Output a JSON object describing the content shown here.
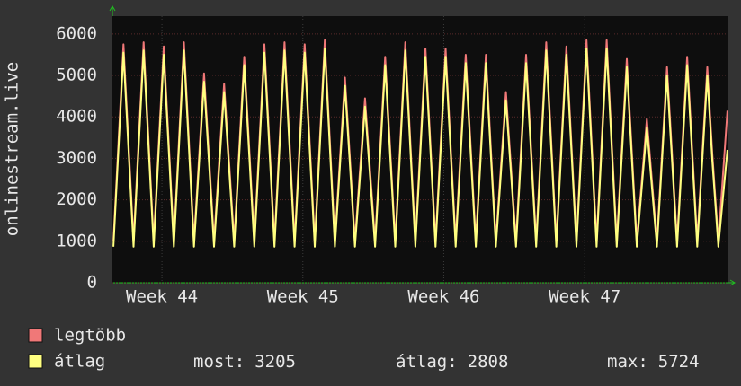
{
  "chart_data": {
    "type": "line",
    "ylabel": "onlinestream.live",
    "x": [
      0.05,
      0.3,
      0.55,
      0.8,
      1.05,
      1.3,
      1.55,
      1.8,
      2.05,
      2.3,
      2.55,
      2.8,
      3.05,
      3.3,
      3.55,
      3.8,
      4.05,
      4.3,
      4.55,
      4.8,
      5.05,
      5.3,
      5.55,
      5.8,
      6.05,
      6.3,
      6.55,
      6.8,
      7.05,
      7.3,
      7.55,
      7.8,
      8.05,
      8.3,
      8.55,
      8.8,
      9.05,
      9.3,
      9.55,
      9.8,
      10.05,
      10.3,
      10.55,
      10.8,
      11.05,
      11.3,
      11.55,
      11.8,
      12.05,
      12.3,
      12.55,
      12.8,
      13.05,
      13.3,
      13.55,
      13.8,
      14.05,
      14.3,
      14.55,
      14.8,
      15.05,
      15.3,
      15.55,
      15.8,
      16.05,
      16.3,
      16.55,
      16.8,
      17.05,
      17.3,
      17.55,
      17.8,
      18.05,
      18.3,
      18.55,
      18.8,
      19.05,
      19.3,
      19.55,
      19.8,
      20.05,
      20.3,
      20.55,
      20.8,
      21.05,
      21.3,
      21.55,
      21.8,
      22.05,
      22.3,
      22.55,
      22.8,
      23.05,
      23.3,
      23.55,
      23.8,
      24.05,
      24.3,
      24.55,
      24.8,
      25.05,
      25.3,
      25.55,
      25.8,
      26.05,
      26.3,
      26.55,
      26.8,
      27.05,
      27.3,
      27.55,
      27.8,
      28.05,
      28.3,
      28.55,
      28.8,
      29.05,
      29.3,
      29.55,
      29.8,
      30.1,
      30.55
    ],
    "series": [
      {
        "name": "legtöbb",
        "color": "#f07878",
        "values": [
          1000,
          3375,
          5750,
          3375,
          1000,
          3400,
          5800,
          3400,
          1000,
          3350,
          5700,
          3350,
          1000,
          3400,
          5800,
          3400,
          1000,
          3025,
          5050,
          3025,
          1000,
          2900,
          4800,
          2900,
          1000,
          3225,
          5450,
          3225,
          1000,
          3375,
          5750,
          3375,
          1000,
          3400,
          5800,
          3400,
          1000,
          3375,
          5750,
          3375,
          1000,
          3425,
          5850,
          3425,
          1000,
          2975,
          4950,
          2975,
          1000,
          2725,
          4450,
          2725,
          1000,
          3225,
          5450,
          3225,
          1000,
          3400,
          5800,
          3400,
          1000,
          3325,
          5650,
          3325,
          1000,
          3325,
          5650,
          3325,
          1000,
          3250,
          5500,
          3250,
          1000,
          3250,
          5500,
          3250,
          1000,
          2800,
          4600,
          2800,
          1000,
          3250,
          5500,
          3250,
          1000,
          3400,
          5800,
          3400,
          1000,
          3350,
          5700,
          3350,
          1000,
          3425,
          5850,
          3425,
          1000,
          3425,
          5850,
          3425,
          1000,
          3200,
          5400,
          3200,
          1000,
          2475,
          3950,
          2475,
          1000,
          3100,
          5200,
          3100,
          1000,
          3225,
          5450,
          3225,
          1000,
          3100,
          5200,
          3100,
          1000,
          4150
        ]
      },
      {
        "name": "átlag",
        "color": "#ffff80",
        "values": [
          870,
          3210,
          5550,
          3210,
          870,
          3235,
          5600,
          3235,
          870,
          3185,
          5500,
          3185,
          870,
          3235,
          5600,
          3235,
          870,
          2860,
          4850,
          2860,
          870,
          2735,
          4600,
          2735,
          870,
          3060,
          5250,
          3060,
          870,
          3210,
          5550,
          3210,
          870,
          3235,
          5600,
          3235,
          870,
          3210,
          5550,
          3210,
          870,
          3260,
          5650,
          3260,
          870,
          2810,
          4750,
          2810,
          870,
          2560,
          4250,
          2560,
          870,
          3060,
          5250,
          3060,
          870,
          3235,
          5600,
          3235,
          870,
          3160,
          5450,
          3160,
          870,
          3160,
          5450,
          3160,
          870,
          3085,
          5300,
          3085,
          870,
          3085,
          5300,
          3085,
          870,
          2635,
          4400,
          2635,
          870,
          3085,
          5300,
          3085,
          870,
          3235,
          5600,
          3235,
          870,
          3185,
          5500,
          3185,
          870,
          3260,
          5650,
          3260,
          870,
          3260,
          5650,
          3260,
          870,
          3035,
          5200,
          3035,
          870,
          2310,
          3750,
          2310,
          870,
          2935,
          5000,
          2935,
          870,
          3060,
          5250,
          3060,
          870,
          2935,
          5000,
          2935,
          870,
          3205
        ]
      }
    ],
    "xlim": [
      0,
      30.6
    ],
    "xticks": [
      {
        "value": 2.46,
        "label": "Week 44"
      },
      {
        "value": 9.46,
        "label": "Week 45"
      },
      {
        "value": 16.46,
        "label": "Week 46"
      },
      {
        "value": 23.46,
        "label": "Week 47"
      }
    ],
    "ylim": [
      0,
      6430
    ],
    "yticks": [
      0,
      1000,
      2000,
      3000,
      4000,
      5000,
      6000
    ],
    "grid": true,
    "stats": [
      {
        "label": "most:",
        "value": 3205
      },
      {
        "label": "átlag:",
        "value": 2808
      },
      {
        "label": "max:",
        "value": 5724
      }
    ]
  }
}
